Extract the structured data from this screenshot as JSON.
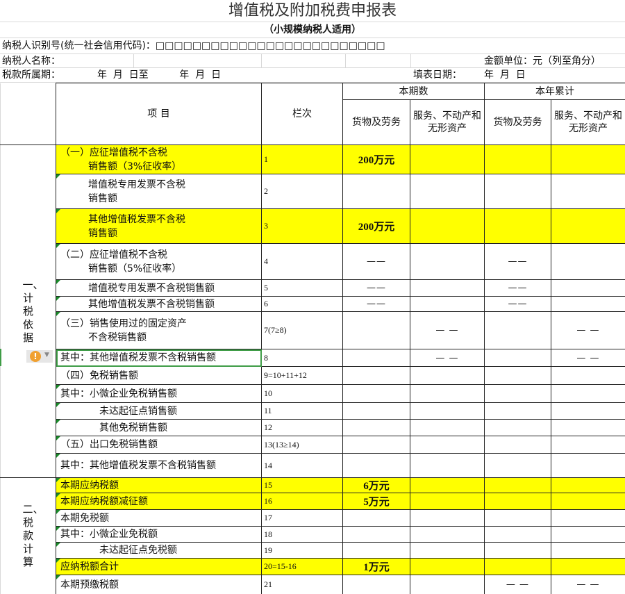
{
  "title": "增值税及附加税费申报表",
  "subtitle": "（小规模纳税人适用）",
  "taxpayer_id_label": "纳税人识别号(统一社会信用代码)：□□□□□□□□□□□□□□□□□□□□□□□□□",
  "taxpayer_name_label": "纳税人名称：",
  "amount_unit": "金额单位：元（列至角分）",
  "period_label": "税款所属期：",
  "period_value": "年  月  日至          年  月  日",
  "fill_date_label": "填表日期：",
  "fill_date_value": "年  月  日",
  "columns": {
    "item": "项  目",
    "line": "栏次",
    "current": "本期数",
    "ytd": "本年累计",
    "goods": "货物及劳务",
    "services": "服务、不动产和无形资产"
  },
  "sections": [
    {
      "label": "一、计税依据"
    },
    {
      "label": "二、税款计算"
    }
  ],
  "rows": [
    {
      "item": [
        "（一）应征增值税不含税",
        "销售额（3%征收率）"
      ],
      "line": "1",
      "goods": "200万元",
      "services": "",
      "ytd_goods": "",
      "ytd_services": "",
      "highlight": true
    },
    {
      "item": [
        "增值税专用发票不含税",
        "销售额"
      ],
      "line": "2",
      "goods": "",
      "services": "",
      "ytd_goods": "",
      "ytd_services": "",
      "highlight": false
    },
    {
      "item": [
        "其他增值税发票不含税",
        "销售额"
      ],
      "line": "3",
      "goods": "200万元",
      "services": "",
      "ytd_goods": "",
      "ytd_services": "",
      "highlight": true
    },
    {
      "item": [
        "（二）应征增值税不含税",
        "销售额（5%征收率）"
      ],
      "line": "4",
      "goods": "——",
      "services": "",
      "ytd_goods": "——",
      "ytd_services": "",
      "highlight": false
    },
    {
      "item": [
        "增值税专用发票不含税销售额"
      ],
      "line": "5",
      "goods": "——",
      "services": "",
      "ytd_goods": "——",
      "ytd_services": "",
      "highlight": false
    },
    {
      "item": [
        "其他增值税发票不含税销售额"
      ],
      "line": "6",
      "goods": "——",
      "services": "",
      "ytd_goods": "——",
      "ytd_services": "",
      "highlight": false
    },
    {
      "item": [
        "（三）销售使用过的固定资产",
        "不含税销售额"
      ],
      "line": "7(7≥8)",
      "goods": "",
      "services": "— —",
      "ytd_goods": "",
      "ytd_services": "— —",
      "highlight": false
    },
    {
      "item": [
        "其中：其他增值税发票不含税销售额"
      ],
      "line": "8",
      "goods": "",
      "services": "— —",
      "ytd_goods": "",
      "ytd_services": "— —",
      "highlight": false,
      "selected": true
    },
    {
      "item": [
        "（四）免税销售额"
      ],
      "line": "9=10+11+12",
      "goods": "",
      "services": "",
      "ytd_goods": "",
      "ytd_services": "",
      "highlight": false
    },
    {
      "item": [
        "其中：小微企业免税销售额"
      ],
      "line": "10",
      "goods": "",
      "services": "",
      "ytd_goods": "",
      "ytd_services": "",
      "highlight": false
    },
    {
      "item": [
        "未达起征点销售额"
      ],
      "line": "11",
      "goods": "",
      "services": "",
      "ytd_goods": "",
      "ytd_services": "",
      "highlight": false
    },
    {
      "item": [
        "其他免税销售额"
      ],
      "line": "12",
      "goods": "",
      "services": "",
      "ytd_goods": "",
      "ytd_services": "",
      "highlight": false
    },
    {
      "item": [
        "（五）出口免税销售额"
      ],
      "line": "13(13≥14)",
      "goods": "",
      "services": "",
      "ytd_goods": "",
      "ytd_services": "",
      "highlight": false
    },
    {
      "item": [
        "其中：其他增值税发票不含税销售额"
      ],
      "line": "14",
      "goods": "",
      "services": "",
      "ytd_goods": "",
      "ytd_services": "",
      "highlight": false
    },
    {
      "item": [
        "本期应纳税额"
      ],
      "line": "15",
      "goods": "6万元",
      "services": "",
      "ytd_goods": "",
      "ytd_services": "",
      "highlight": true
    },
    {
      "item": [
        "本期应纳税额减征额"
      ],
      "line": "16",
      "goods": "5万元",
      "services": "",
      "ytd_goods": "",
      "ytd_services": "",
      "highlight": true
    },
    {
      "item": [
        "本期免税额"
      ],
      "line": "17",
      "goods": "",
      "services": "",
      "ytd_goods": "",
      "ytd_services": "",
      "highlight": false
    },
    {
      "item": [
        "其中：小微企业免税额"
      ],
      "line": "18",
      "goods": "",
      "services": "",
      "ytd_goods": "",
      "ytd_services": "",
      "highlight": false
    },
    {
      "item": [
        "未达起征点免税额"
      ],
      "line": "19",
      "goods": "",
      "services": "",
      "ytd_goods": "",
      "ytd_services": "",
      "highlight": false
    },
    {
      "item": [
        "应纳税额合计"
      ],
      "line": "20=15-16",
      "goods": "1万元",
      "services": "",
      "ytd_goods": "",
      "ytd_services": "",
      "highlight": true
    },
    {
      "item": [
        "本期预缴税额"
      ],
      "line": "21",
      "goods": "",
      "services": "",
      "ytd_goods": "— —",
      "ytd_services": "— —",
      "highlight": false
    }
  ],
  "warning_icon": "exclamation-circle-icon",
  "colors": {
    "highlight": "#ffff00",
    "selection": "#3f9c47",
    "warning": "#f0a030"
  }
}
